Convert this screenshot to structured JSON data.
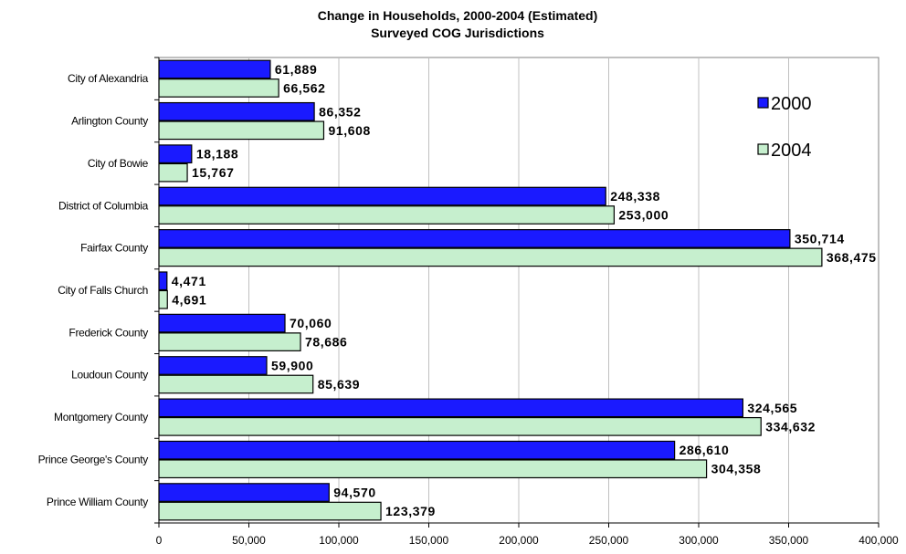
{
  "chart_data": {
    "type": "bar",
    "orientation": "horizontal",
    "title": "Change in Households, 2000-2004 (Estimated)",
    "subtitle": "Surveyed COG Jurisdictions",
    "categories": [
      "City of Alexandria",
      "Arlington County",
      "City of Bowie",
      "District of Columbia",
      "Fairfax County",
      "City of Falls Church",
      "Frederick County",
      "Loudoun County",
      "Montgomery County",
      "Prince George's County",
      "Prince William County"
    ],
    "series": [
      {
        "name": "2000",
        "color": "#1a1aff",
        "values": [
          61889,
          86352,
          18188,
          248338,
          350714,
          4471,
          70060,
          59900,
          324565,
          286610,
          94570
        ],
        "labels": [
          "61,889",
          "86,352",
          "18,188",
          "248,338",
          "350,714",
          "4,471",
          "70,060",
          "59,900",
          "324,565",
          "286,610",
          "94,570"
        ]
      },
      {
        "name": "2004",
        "color": "#c6efce",
        "values": [
          66562,
          91608,
          15767,
          253000,
          368475,
          4691,
          78686,
          85639,
          334632,
          304358,
          123379
        ],
        "labels": [
          "66,562",
          "91,608",
          "15,767",
          "253,000",
          "368,475",
          "4,691",
          "78,686",
          "85,639",
          "334,632",
          "304,358",
          "123,379"
        ]
      }
    ],
    "xlim": [
      0,
      400000
    ],
    "xticks": [
      0,
      50000,
      100000,
      150000,
      200000,
      250000,
      300000,
      350000,
      400000
    ],
    "xtick_labels": [
      "0",
      "50,000",
      "100,000",
      "150,000",
      "200,000",
      "250,000",
      "300,000",
      "350,000",
      "400,000"
    ],
    "grid": "vertical",
    "legend_position": "top-right"
  }
}
